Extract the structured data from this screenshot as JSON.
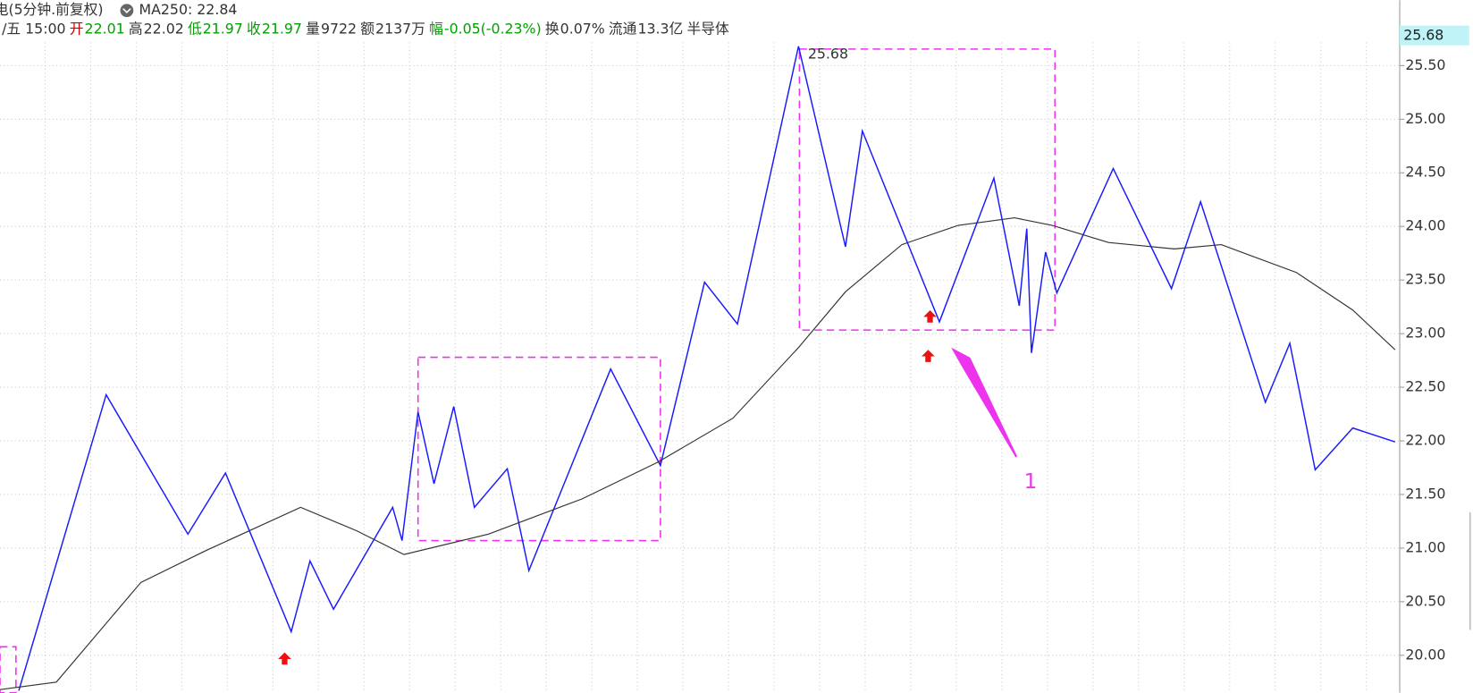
{
  "chart_data": {
    "type": "line",
    "title": "电(5分钟.前复权)",
    "ma_label": "MA250: 22.84",
    "info": [
      {
        "text": "/五 15:00",
        "color": "#333333"
      },
      {
        "text": "开",
        "color": "#d00000"
      },
      {
        "text": "22.01",
        "color": "#00a000"
      },
      {
        "text": "高",
        "color": "#333333"
      },
      {
        "text": "22.02",
        "color": "#333333"
      },
      {
        "text": "低",
        "color": "#00a000"
      },
      {
        "text": "21.97",
        "color": "#00a000"
      },
      {
        "text": "收",
        "color": "#00a000"
      },
      {
        "text": "21.97",
        "color": "#00a000"
      },
      {
        "text": "量",
        "color": "#333333"
      },
      {
        "text": "9722",
        "color": "#333333"
      },
      {
        "text": "额",
        "color": "#333333"
      },
      {
        "text": "2137万",
        "color": "#333333"
      },
      {
        "text": "幅",
        "color": "#00a000"
      },
      {
        "text": "-0.05(-0.23%)",
        "color": "#00a000"
      },
      {
        "text": "换",
        "color": "#333333"
      },
      {
        "text": "0.07%",
        "color": "#333333"
      },
      {
        "text": "流通",
        "color": "#333333"
      },
      {
        "text": "13.3亿",
        "color": "#333333"
      },
      {
        "text": "半导体",
        "color": "#333333"
      }
    ],
    "current_price": "25.68",
    "peak_label": "25.68",
    "annotation": "1",
    "xlim": [
      0,
      1490
    ],
    "ylim": [
      19.65,
      26.11
    ],
    "yticks": [
      {
        "value": 25.5,
        "label": "25.50"
      },
      {
        "value": 25,
        "label": "25.00"
      },
      {
        "value": 24.5,
        "label": "24.50"
      },
      {
        "value": 24,
        "label": "24.00"
      },
      {
        "value": 23.5,
        "label": "23.50"
      },
      {
        "value": 23,
        "label": "23.00"
      },
      {
        "value": 22.5,
        "label": "22.50"
      },
      {
        "value": 22,
        "label": "22.00"
      },
      {
        "value": 21.5,
        "label": "21.50"
      },
      {
        "value": 21,
        "label": "21.00"
      },
      {
        "value": 20.5,
        "label": "20.50"
      },
      {
        "value": 20,
        "label": "20.00"
      }
    ],
    "grid": true,
    "series": [
      {
        "color": "#1a1aff",
        "x": [
          20,
          113,
          200,
          240,
          310,
          330,
          355,
          418,
          428,
          445,
          462,
          483,
          505,
          540,
          563,
          650,
          703,
          750,
          785,
          850,
          900,
          918,
          1000,
          1058,
          1085,
          1093,
          1098,
          1113,
          1125,
          1185,
          1247,
          1278,
          1347,
          1373,
          1400,
          1440,
          1485
        ],
        "values": [
          19.67,
          22.43,
          21.13,
          21.7,
          20.22,
          20.88,
          20.43,
          21.38,
          21.07,
          22.27,
          21.6,
          22.32,
          21.38,
          21.74,
          20.79,
          22.67,
          21.77,
          23.48,
          23.09,
          25.68,
          23.81,
          24.89,
          23.11,
          24.45,
          23.26,
          23.98,
          22.82,
          23.76,
          23.38,
          24.54,
          23.42,
          24.23,
          22.36,
          22.91,
          21.73,
          22.12,
          21.99
        ]
      },
      {
        "color": "#333333",
        "x": [
          0,
          60,
          150,
          220,
          320,
          380,
          430,
          520,
          620,
          700,
          780,
          850,
          900,
          960,
          1020,
          1080,
          1120,
          1180,
          1250,
          1300,
          1380,
          1440,
          1485
        ],
        "values": [
          19.68,
          19.75,
          20.68,
          20.98,
          21.38,
          21.16,
          20.94,
          21.13,
          21.46,
          21.8,
          22.21,
          22.87,
          23.39,
          23.83,
          24.01,
          24.08,
          24.01,
          23.85,
          23.79,
          23.83,
          23.57,
          23.22,
          22.85
        ]
      }
    ]
  }
}
